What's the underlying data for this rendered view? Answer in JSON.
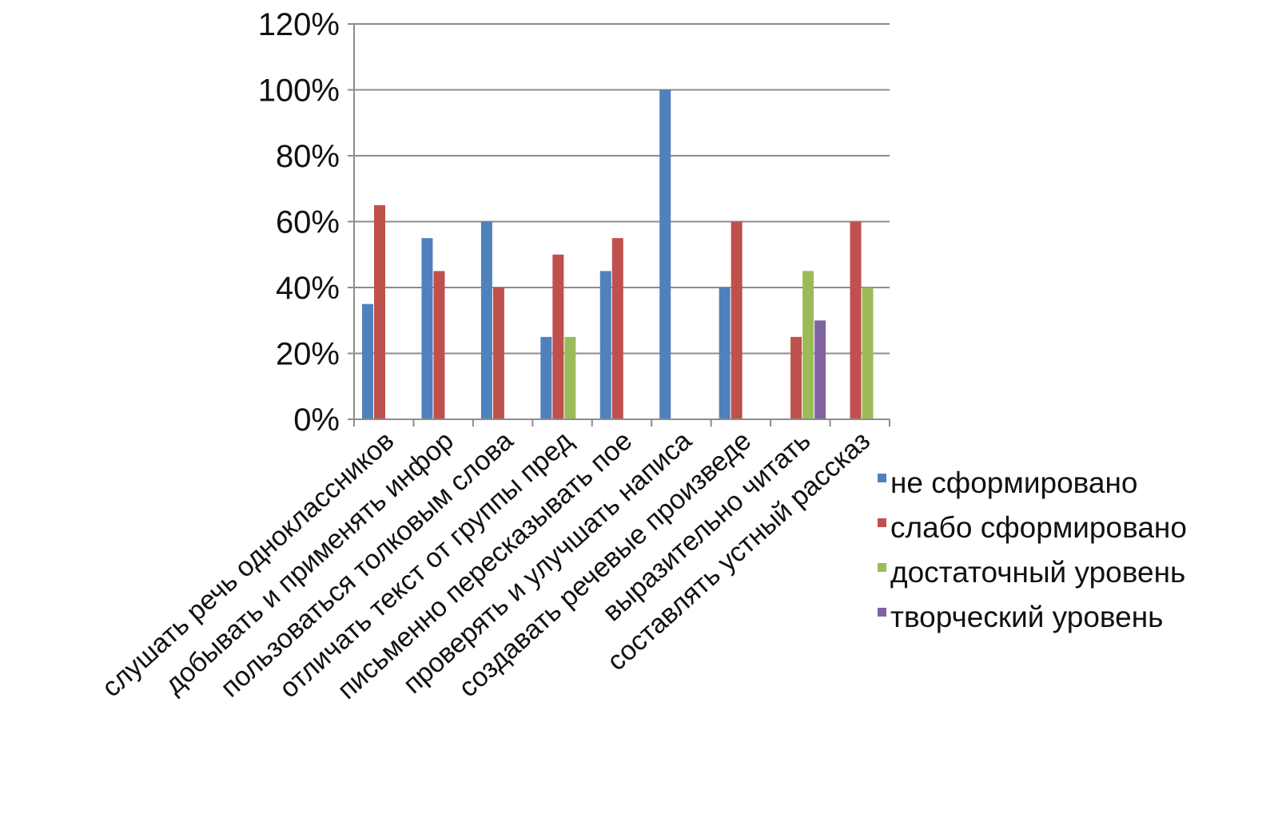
{
  "chart_data": {
    "type": "bar",
    "title": "",
    "xlabel": "",
    "ylabel": "",
    "ylim": [
      0,
      120
    ],
    "yticks": [
      0,
      20,
      40,
      60,
      80,
      100,
      120
    ],
    "ytick_labels": [
      "0%",
      "20%",
      "40%",
      "60%",
      "80%",
      "100%",
      "120%"
    ],
    "grid": true,
    "legend_position": "right",
    "categories": [
      "слушать речь одноклассников",
      "добывать и применять инфор",
      "пользоваться толковым слова",
      "отличать текст от группы пред",
      "письменно пересказывать пое",
      "проверять и улучшать написа",
      "создавать речевые произведе",
      "выразительно читать",
      "составлять устный рассказ"
    ],
    "series": [
      {
        "name": "не сформировано",
        "color": "#4F81BD",
        "values": [
          35,
          55,
          60,
          25,
          45,
          100,
          40,
          0,
          0
        ]
      },
      {
        "name": "слабо сформировано",
        "color": "#C0504D",
        "values": [
          65,
          45,
          40,
          50,
          55,
          0,
          60,
          25,
          60
        ]
      },
      {
        "name": "достаточный уровень",
        "color": "#9BBB59",
        "values": [
          0,
          0,
          0,
          25,
          0,
          0,
          0,
          45,
          40
        ]
      },
      {
        "name": "творческий уровень",
        "color": "#8064A2",
        "values": [
          0,
          0,
          0,
          0,
          0,
          0,
          0,
          30,
          0
        ]
      }
    ]
  }
}
